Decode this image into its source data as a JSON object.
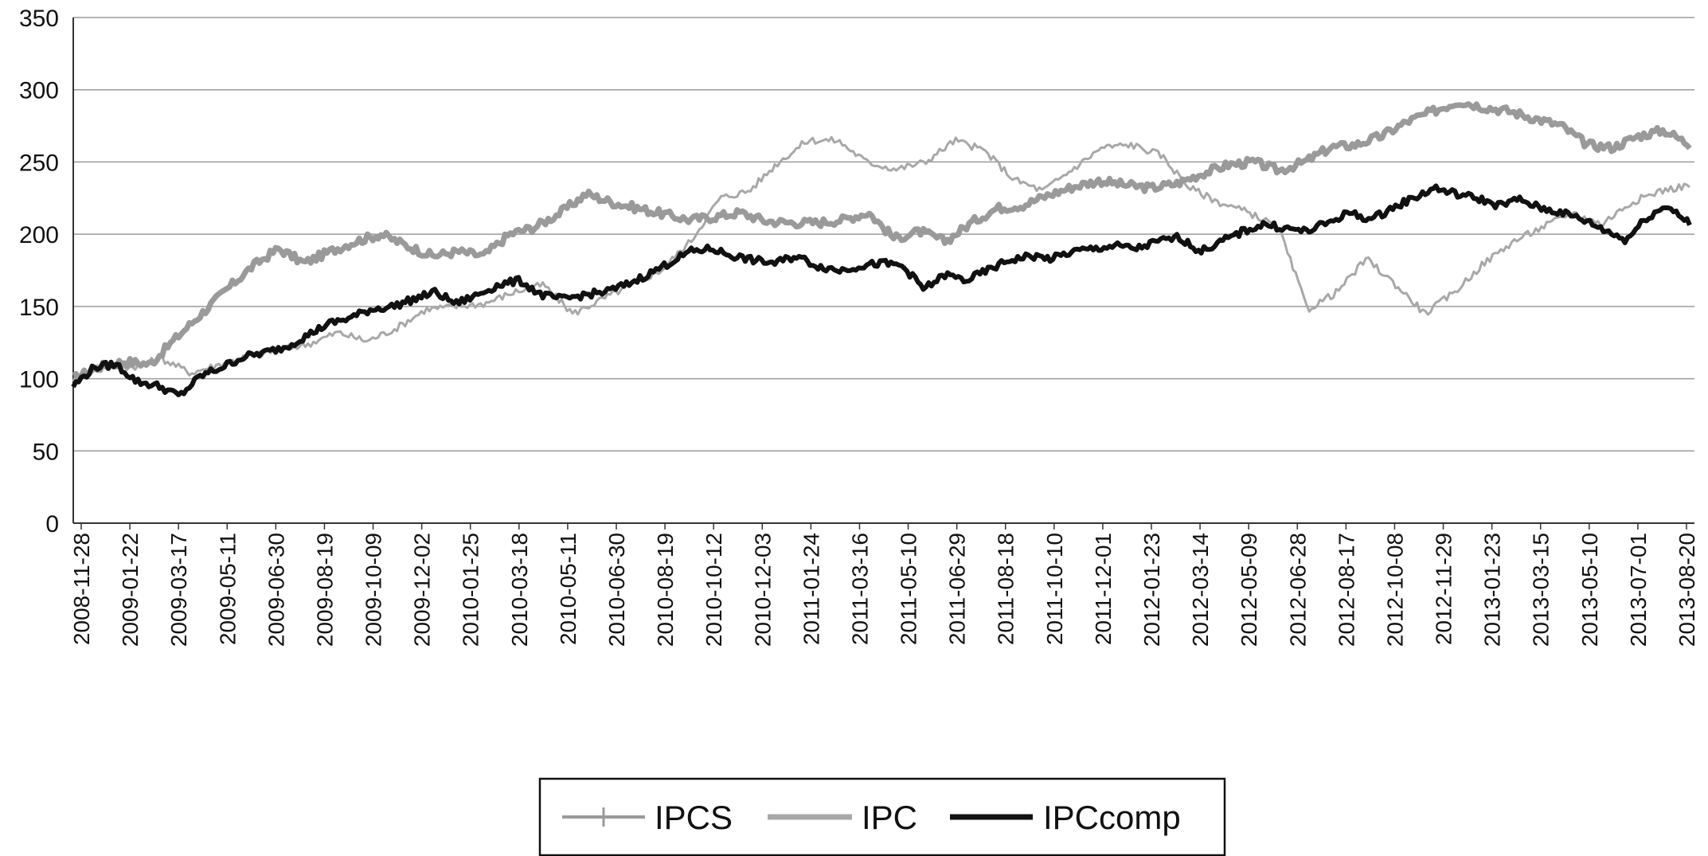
{
  "chart_data": {
    "type": "line",
    "ylim": [
      0,
      350
    ],
    "yticks": [
      0,
      50,
      100,
      150,
      200,
      250,
      300,
      350
    ],
    "grid": true,
    "legend_position": "bottom",
    "x_tick_labels": [
      "2008-11-28",
      "2009-01-22",
      "2009-03-17",
      "2009-05-11",
      "2009-06-30",
      "2009-08-19",
      "2009-10-09",
      "2009-12-02",
      "2010-01-25",
      "2010-03-18",
      "2010-05-11",
      "2010-06-30",
      "2010-08-19",
      "2010-10-12",
      "2010-12-03",
      "2011-01-24",
      "2011-03-16",
      "2011-05-10",
      "2011-06-29",
      "2011-08-18",
      "2011-10-10",
      "2011-12-01",
      "2012-01-23",
      "2012-03-14",
      "2012-05-09",
      "2012-06-28",
      "2012-08-17",
      "2012-10-08",
      "2012-11-29",
      "2013-01-23",
      "2013-03-15",
      "2013-05-10",
      "2013-07-01",
      "2013-08-20"
    ],
    "series": [
      {
        "name": "IPCS",
        "color": "#9a9a9a",
        "marker": "plus",
        "values": [
          100,
          108,
          112,
          110,
          128,
          145,
          162,
          178,
          190,
          180,
          188,
          195,
          200,
          192,
          185,
          188,
          185,
          200,
          205,
          215,
          228,
          222,
          218,
          214,
          210,
          212,
          215,
          209,
          208,
          208,
          210,
          215,
          197,
          202,
          195,
          208,
          218,
          220,
          227,
          233,
          237,
          234,
          232,
          235,
          242,
          248,
          250,
          244,
          250,
          260,
          262,
          268,
          278,
          285,
          292,
          288,
          285,
          280,
          275,
          262,
          260,
          268,
          272,
          262
        ]
      },
      {
        "name": "IPC",
        "color": "#a8a8a8",
        "marker": "none",
        "values": [
          100,
          110,
          108,
          114,
          104,
          110,
          116,
          120,
          124,
          132,
          126,
          135,
          148,
          150,
          152,
          160,
          165,
          145,
          155,
          165,
          175,
          195,
          225,
          230,
          250,
          265,
          265,
          250,
          245,
          250,
          265,
          258,
          238,
          230,
          245,
          260,
          262,
          255,
          232,
          222,
          215,
          205,
          148,
          160,
          183,
          165,
          145,
          160,
          180,
          195,
          205,
          215,
          207,
          222,
          230,
          234
        ]
      },
      {
        "name": "IPCcomp",
        "color": "#111111",
        "marker": "none",
        "values": [
          95,
          108,
          110,
          98,
          95,
          88,
          102,
          108,
          115,
          118,
          122,
          130,
          138,
          142,
          148,
          150,
          155,
          160,
          152,
          158,
          165,
          168,
          158,
          155,
          158,
          160,
          165,
          172,
          180,
          188,
          190,
          185,
          182,
          180,
          185,
          178,
          175,
          178,
          180,
          178,
          162,
          172,
          168,
          175,
          182,
          185,
          183,
          188,
          190,
          192,
          190,
          195,
          198,
          188,
          195,
          202,
          207,
          204,
          202,
          208,
          215,
          210,
          218,
          225,
          232,
          228,
          225,
          220,
          224,
          218,
          215,
          210,
          203,
          196,
          212,
          220,
          207
        ]
      }
    ]
  }
}
